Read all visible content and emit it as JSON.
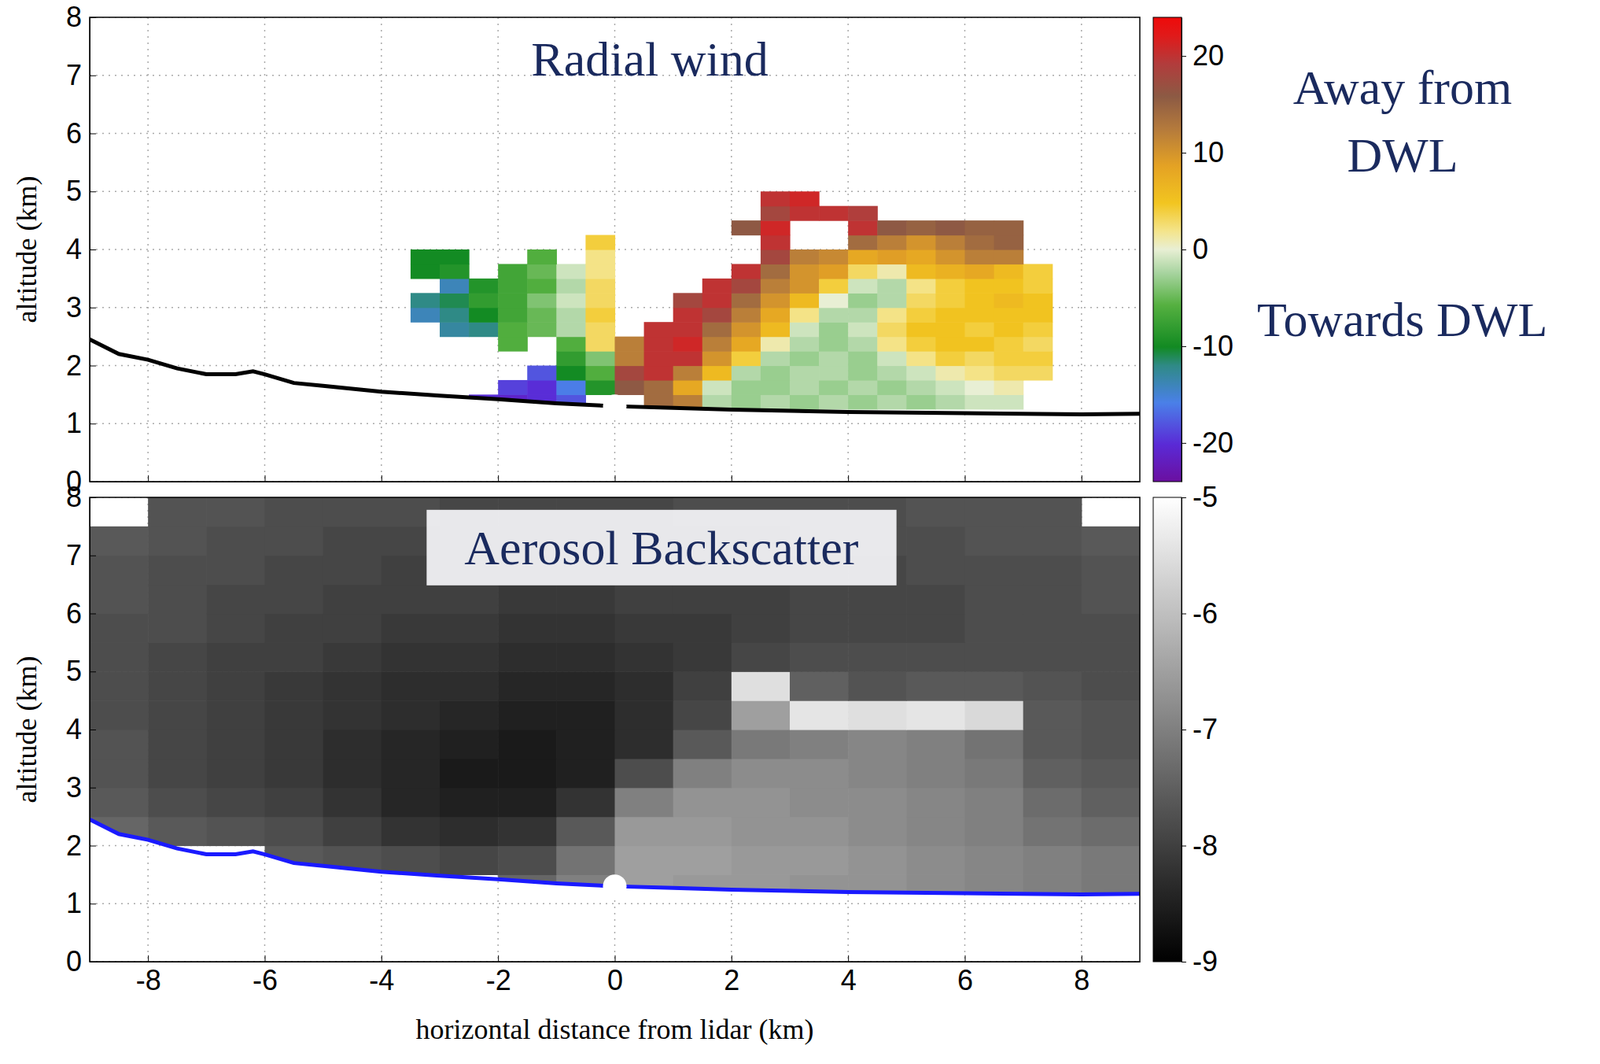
{
  "chart_data": [
    {
      "type": "heatmap",
      "title": "Radial wind",
      "ylabel": "altitude (km)",
      "xlim": [
        -9,
        9
      ],
      "ylim": [
        0,
        8
      ],
      "xticks": [
        -8,
        -6,
        -4,
        -2,
        0,
        2,
        4,
        6,
        8
      ],
      "yticks": [
        0,
        1,
        2,
        3,
        4,
        5,
        6,
        7,
        8
      ],
      "grid": true,
      "tick_labels": "y",
      "x": [
        -3.75,
        -3.25,
        -2.75,
        -2.25,
        -1.75,
        -1.25,
        -0.75,
        -0.25,
        0.25,
        0.75,
        1.25,
        1.75,
        2.25,
        2.75,
        3.25,
        3.75,
        4.25,
        4.75,
        5.25,
        5.75,
        6.25,
        6.75,
        7.25,
        7.75
      ],
      "y": [
        1.375,
        1.625,
        1.875,
        2.125,
        2.375,
        2.625,
        2.875,
        3.125,
        3.375,
        3.625,
        3.875,
        4.125,
        4.375,
        4.625,
        4.875
      ],
      "z": [
        [
          null,
          null,
          null,
          -20,
          -21,
          -20,
          -18,
          null,
          null,
          14,
          12,
          -2,
          -3,
          -2,
          -3,
          -2,
          -3,
          -2,
          -3,
          -2,
          -1,
          -1,
          null,
          null
        ],
        [
          null,
          null,
          null,
          null,
          -19,
          -20,
          -16,
          -9,
          16,
          14,
          8,
          -1,
          -3,
          -3,
          -2,
          -3,
          -2,
          -3,
          -2,
          -1,
          0,
          1,
          null,
          null
        ],
        [
          null,
          null,
          null,
          null,
          null,
          -18,
          -10,
          -6,
          18,
          20,
          12,
          6,
          -2,
          -3,
          -2,
          -2,
          -3,
          -2,
          -1,
          1,
          2,
          3,
          3,
          null
        ],
        [
          null,
          null,
          null,
          null,
          null,
          null,
          -8,
          -4,
          12,
          20,
          20,
          10,
          4,
          -2,
          -3,
          -2,
          -3,
          -1,
          2,
          4,
          3,
          4,
          4,
          null
        ],
        [
          null,
          null,
          null,
          null,
          -6,
          null,
          -6,
          3,
          12,
          20,
          21,
          12,
          8,
          1,
          -2,
          -3,
          -2,
          2,
          4,
          5,
          5,
          4,
          3,
          null
        ],
        [
          null,
          null,
          -13,
          -12,
          -6,
          -5,
          -2,
          3,
          null,
          20,
          20,
          14,
          10,
          6,
          -1,
          -3,
          -1,
          3,
          5,
          5,
          4,
          5,
          4,
          null
        ],
        [
          null,
          -14,
          -12,
          -10,
          -7,
          -5,
          -2,
          4,
          null,
          null,
          20,
          18,
          12,
          8,
          2,
          -2,
          -2,
          2,
          4,
          5,
          5,
          5,
          5,
          null
        ],
        [
          null,
          -12,
          -11,
          -8,
          -7,
          -4,
          -1,
          3,
          null,
          null,
          18,
          20,
          14,
          10,
          6,
          0,
          -3,
          -2,
          3,
          4,
          5,
          6,
          5,
          null
        ],
        [
          null,
          null,
          -14,
          -9,
          -7,
          -6,
          -2,
          3,
          null,
          null,
          null,
          20,
          18,
          12,
          10,
          4,
          -1,
          -2,
          2,
          4,
          5,
          5,
          4,
          null
        ],
        [
          null,
          -10,
          -9,
          null,
          -7,
          -5,
          -1,
          2,
          null,
          null,
          null,
          null,
          20,
          14,
          10,
          9,
          3,
          1,
          6,
          7,
          8,
          6,
          4,
          null
        ],
        [
          null,
          -10,
          -10,
          null,
          null,
          -6,
          null,
          2,
          null,
          null,
          null,
          null,
          null,
          18,
          12,
          11,
          8,
          9,
          8,
          10,
          12,
          12,
          null,
          null
        ],
        [
          null,
          null,
          null,
          null,
          null,
          null,
          null,
          4,
          null,
          null,
          null,
          null,
          null,
          20,
          null,
          null,
          14,
          12,
          10,
          12,
          14,
          15,
          null,
          null
        ],
        [
          null,
          null,
          null,
          null,
          null,
          null,
          null,
          null,
          null,
          null,
          null,
          null,
          16,
          21,
          null,
          null,
          20,
          16,
          15,
          16,
          15,
          15,
          null,
          null
        ],
        [
          null,
          null,
          null,
          null,
          null,
          null,
          null,
          null,
          null,
          null,
          null,
          null,
          null,
          18,
          20,
          20,
          19,
          null,
          null,
          null,
          null,
          null,
          null,
          null
        ],
        [
          null,
          null,
          null,
          null,
          null,
          null,
          null,
          null,
          null,
          null,
          null,
          null,
          null,
          20,
          21,
          null,
          null,
          null,
          null,
          null,
          null,
          null,
          null,
          null
        ]
      ],
      "colorbar": {
        "range": [
          -24,
          24
        ],
        "ticks": [
          -20,
          -10,
          0,
          10,
          20
        ],
        "label_high": "Away from DWL",
        "label_low": "Towards DWL"
      },
      "line": {
        "x": [
          -9,
          -8.5,
          -8,
          -7.5,
          -7,
          -6.5,
          -6.2,
          -6,
          -5.5,
          -5,
          -4,
          -3,
          -2,
          -1,
          0,
          1,
          2,
          4,
          6,
          8,
          9
        ],
        "y": [
          2.45,
          2.2,
          2.1,
          1.95,
          1.85,
          1.85,
          1.9,
          1.85,
          1.7,
          1.65,
          1.55,
          1.48,
          1.42,
          1.35,
          1.3,
          1.27,
          1.24,
          1.2,
          1.18,
          1.16,
          1.17
        ],
        "color": "#000000"
      }
    },
    {
      "type": "heatmap",
      "title": "Aerosol Backscatter",
      "xlabel": "horizontal distance from lidar (km)",
      "ylabel": "altitude (km)",
      "xlim": [
        -9,
        9
      ],
      "ylim": [
        0,
        8
      ],
      "xticks": [
        -8,
        -6,
        -4,
        -2,
        0,
        2,
        4,
        6,
        8
      ],
      "yticks": [
        0,
        1,
        2,
        3,
        4,
        5,
        6,
        7,
        8
      ],
      "grid": true,
      "x": [
        -8.5,
        -7.5,
        -6.5,
        -5.5,
        -4.5,
        -3.5,
        -2.5,
        -1.5,
        -0.5,
        0.5,
        1.5,
        2.5,
        3.5,
        4.5,
        5.5,
        6.5,
        7.5,
        8.5
      ],
      "y": [
        1.25,
        1.75,
        2.25,
        2.75,
        3.25,
        3.75,
        4.25,
        4.75,
        5.25,
        5.75,
        6.25,
        6.75,
        7.25,
        7.75
      ],
      "z": [
        [
          null,
          null,
          null,
          null,
          null,
          null,
          null,
          -7.4,
          -7.0,
          -6.5,
          -6.6,
          -6.6,
          -6.7,
          -6.7,
          -6.8,
          -6.9,
          -7.0,
          -7.1
        ],
        [
          null,
          null,
          null,
          -7.6,
          -7.7,
          -7.8,
          -7.9,
          -7.8,
          -7.2,
          -6.5,
          -6.5,
          -6.6,
          -6.6,
          -6.7,
          -6.8,
          -6.9,
          -7.0,
          -7.1
        ],
        [
          -7.4,
          -7.6,
          -7.7,
          -7.8,
          -8.0,
          -8.2,
          -8.3,
          -8.2,
          -7.6,
          -6.6,
          -6.6,
          -6.7,
          -6.7,
          -6.8,
          -6.9,
          -7.0,
          -7.2,
          -7.3
        ],
        [
          -7.6,
          -7.8,
          -7.9,
          -8.0,
          -8.2,
          -8.4,
          -8.5,
          -8.5,
          -8.2,
          -7.0,
          -6.7,
          -6.7,
          -6.8,
          -6.8,
          -6.9,
          -7.0,
          -7.3,
          -7.5
        ],
        [
          -7.7,
          -7.9,
          -8.0,
          -8.1,
          -8.3,
          -8.4,
          -8.6,
          -8.6,
          -8.5,
          -7.8,
          -7.0,
          -6.8,
          -6.8,
          -6.9,
          -7.0,
          -7.1,
          -7.5,
          -7.6
        ],
        [
          -7.7,
          -7.9,
          -8.0,
          -8.1,
          -8.3,
          -8.4,
          -8.5,
          -8.6,
          -8.5,
          -8.3,
          -7.6,
          -7.1,
          -7.0,
          -6.9,
          -7.0,
          -7.2,
          -7.6,
          -7.7
        ],
        [
          -7.8,
          -7.9,
          -8.0,
          -8.1,
          -8.2,
          -8.3,
          -8.4,
          -8.5,
          -8.5,
          -8.3,
          -7.9,
          -6.5,
          -5.4,
          -5.5,
          -5.4,
          -5.6,
          -7.6,
          -7.7
        ],
        [
          -7.8,
          -7.9,
          -8.0,
          -8.1,
          -8.2,
          -8.3,
          -8.3,
          -8.4,
          -8.4,
          -8.3,
          -8.0,
          -5.5,
          -7.5,
          -7.7,
          -7.6,
          -7.6,
          -7.7,
          -7.8
        ],
        [
          -7.8,
          -7.9,
          -8.0,
          -8.0,
          -8.1,
          -8.2,
          -8.2,
          -8.3,
          -8.3,
          -8.2,
          -8.1,
          -7.9,
          -7.8,
          -7.8,
          -7.8,
          -7.8,
          -7.8,
          -7.8
        ],
        [
          -7.8,
          -7.8,
          -7.9,
          -8.0,
          -8.0,
          -8.1,
          -8.1,
          -8.2,
          -8.2,
          -8.1,
          -8.1,
          -8.0,
          -7.9,
          -7.9,
          -7.9,
          -7.8,
          -7.8,
          -7.8
        ],
        [
          -7.7,
          -7.8,
          -7.9,
          -7.9,
          -8.0,
          -8.0,
          -8.0,
          -8.1,
          -8.1,
          -8.0,
          -8.0,
          -8.0,
          -7.9,
          -7.9,
          -7.9,
          -7.8,
          -7.8,
          -7.7
        ],
        [
          -7.7,
          -7.8,
          -7.8,
          -7.9,
          -7.9,
          -8.0,
          -8.0,
          -8.0,
          -8.0,
          -8.0,
          -8.0,
          -7.9,
          -7.9,
          -7.9,
          -7.8,
          -7.8,
          -7.8,
          -7.7
        ],
        [
          -7.6,
          -7.7,
          -7.8,
          -7.8,
          -7.9,
          -7.9,
          -7.9,
          -8.0,
          -8.0,
          -7.9,
          -7.9,
          -7.9,
          -7.8,
          -7.8,
          -7.8,
          -7.7,
          -7.7,
          -7.6
        ],
        [
          null,
          -7.7,
          -7.7,
          -7.8,
          -7.8,
          -7.8,
          -7.9,
          -7.9,
          -7.9,
          -7.9,
          -7.8,
          -7.8,
          -7.8,
          -7.8,
          -7.7,
          -7.7,
          -7.7,
          null
        ]
      ],
      "colorbar": {
        "range": [
          -9,
          -5
        ],
        "ticks": [
          -9,
          -8,
          -7,
          -6,
          -5
        ]
      },
      "line": {
        "x": [
          -9,
          -8.5,
          -8,
          -7.5,
          -7,
          -6.5,
          -6.2,
          -6,
          -5.5,
          -5,
          -4,
          -3,
          -2,
          -1,
          0,
          1,
          2,
          4,
          6,
          8,
          9
        ],
        "y": [
          2.45,
          2.2,
          2.1,
          1.95,
          1.85,
          1.85,
          1.9,
          1.85,
          1.7,
          1.65,
          1.55,
          1.48,
          1.42,
          1.35,
          1.3,
          1.27,
          1.24,
          1.2,
          1.18,
          1.16,
          1.17
        ],
        "color": "#1a1aff"
      }
    }
  ]
}
